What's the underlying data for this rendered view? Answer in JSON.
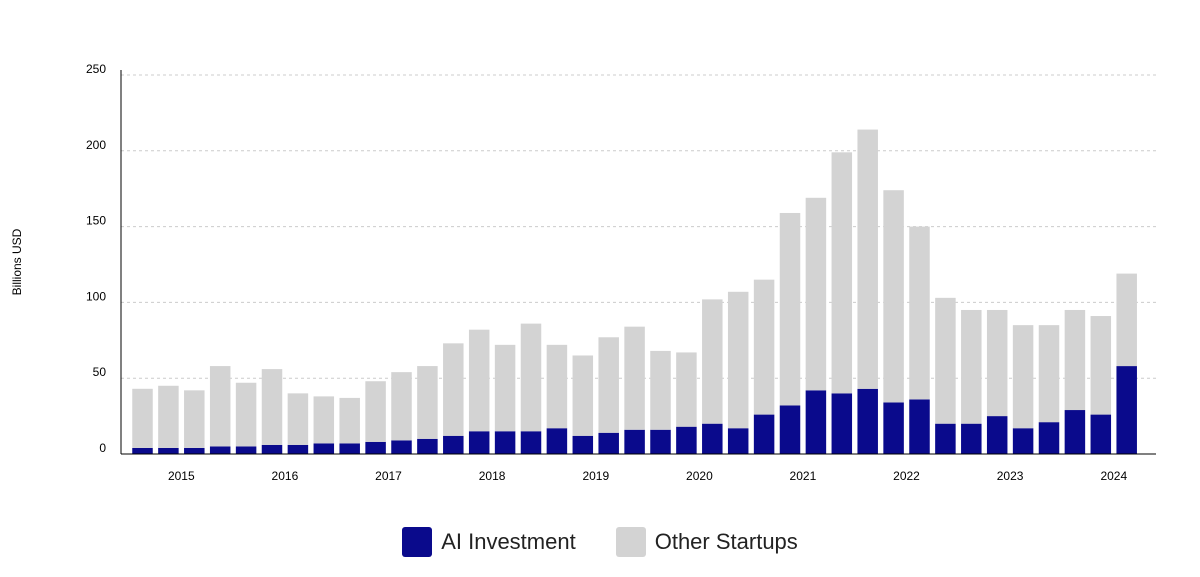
{
  "chart_data": {
    "type": "bar",
    "stacked": true,
    "title": "",
    "xlabel": "",
    "ylabel": "Billions USD",
    "ylim": [
      0,
      250
    ],
    "yticks": [
      0,
      50,
      100,
      150,
      200,
      250
    ],
    "year_labels": [
      "2015",
      "2016",
      "2017",
      "2018",
      "2019",
      "2020",
      "2021",
      "2022",
      "2023",
      "2024"
    ],
    "categories": [
      "2015 Q1",
      "2015 Q2",
      "2015 Q3",
      "2015 Q4",
      "2016 Q1",
      "2016 Q2",
      "2016 Q3",
      "2016 Q4",
      "2017 Q1",
      "2017 Q2",
      "2017 Q3",
      "2017 Q4",
      "2018 Q1",
      "2018 Q2",
      "2018 Q3",
      "2018 Q4",
      "2019 Q1",
      "2019 Q2",
      "2019 Q3",
      "2019 Q4",
      "2020 Q1",
      "2020 Q2",
      "2020 Q3",
      "2020 Q4",
      "2021 Q1",
      "2021 Q2",
      "2021 Q3",
      "2021 Q4",
      "2022 Q1",
      "2022 Q2",
      "2022 Q3",
      "2022 Q4",
      "2023 Q1",
      "2023 Q2",
      "2023 Q3",
      "2023 Q4",
      "2024 Q1",
      "2024 Q2",
      "2024 Q3",
      "2024 Q4"
    ],
    "series": [
      {
        "name": "AI Investment",
        "color": "#0a0a8c",
        "values": [
          4,
          4,
          4,
          5,
          5,
          6,
          6,
          7,
          7,
          8,
          9,
          10,
          12,
          15,
          15,
          15,
          17,
          12,
          14,
          16,
          16,
          18,
          20,
          17,
          26,
          32,
          42,
          40,
          43,
          34,
          36,
          20,
          20,
          25,
          17,
          21,
          29,
          26,
          58,
          0
        ]
      },
      {
        "name": "Other Startups",
        "color": "#d3d3d3",
        "values": [
          39,
          41,
          38,
          53,
          42,
          50,
          34,
          31,
          30,
          40,
          45,
          48,
          61,
          67,
          57,
          71,
          55,
          53,
          63,
          68,
          52,
          49,
          82,
          90,
          89,
          127,
          127,
          159,
          171,
          140,
          114,
          83,
          75,
          70,
          68,
          64,
          66,
          65,
          61,
          0
        ]
      }
    ],
    "grid": true,
    "legend_position": "bottom"
  },
  "legend": {
    "ai_label": "AI Investment",
    "other_label": "Other Startups",
    "ai_color": "#0a0a8c",
    "other_color": "#d3d3d3"
  }
}
